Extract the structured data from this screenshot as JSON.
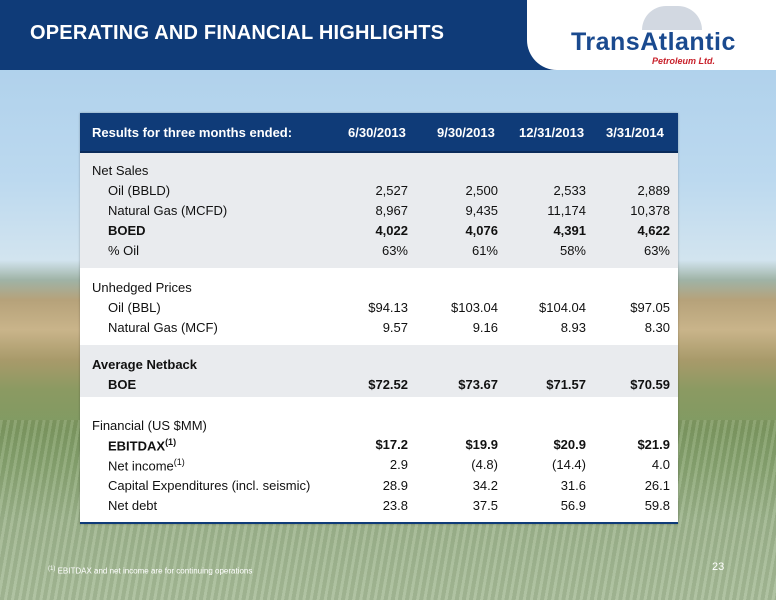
{
  "header": {
    "title": "OPERATING AND FINANCIAL HIGHLIGHTS"
  },
  "logo": {
    "name": "TransAtlantic",
    "sub": "Petroleum Ltd."
  },
  "table": {
    "header_label": "Results for three months ended:",
    "columns": [
      "6/30/2013",
      "9/30/2013",
      "12/31/2013",
      "3/31/2014"
    ],
    "sections": {
      "net_sales": {
        "title": "Net Sales",
        "rows": [
          {
            "label": "Oil (BBLD)",
            "values": [
              "2,527",
              "2,500",
              "2,533",
              "2,889"
            ]
          },
          {
            "label": "Natural Gas (MCFD)",
            "values": [
              "8,967",
              "9,435",
              "11,174",
              "10,378"
            ]
          },
          {
            "label": "BOED",
            "values": [
              "4,022",
              "4,076",
              "4,391",
              "4,622"
            ]
          },
          {
            "label": "% Oil",
            "values": [
              "63%",
              "61%",
              "58%",
              "63%"
            ]
          }
        ]
      },
      "prices": {
        "title": "Unhedged Prices",
        "rows": [
          {
            "label": "Oil (BBL)",
            "values": [
              "$94.13",
              "$103.04",
              "$104.04",
              "$97.05"
            ]
          },
          {
            "label": "Natural Gas (MCF)",
            "values": [
              "9.57",
              "9.16",
              "8.93",
              "8.30"
            ]
          }
        ]
      },
      "netback": {
        "title": "Average Netback",
        "rows": [
          {
            "label": "BOE",
            "values": [
              "$72.52",
              "$73.67",
              "$71.57",
              "$70.59"
            ]
          }
        ]
      },
      "financial": {
        "title": "Financial (US $MM)",
        "rows": [
          {
            "label": "EBITDAX",
            "sup": "(1)",
            "values": [
              "$17.2",
              "$19.9",
              "$20.9",
              "$21.9"
            ]
          },
          {
            "label": "Net income",
            "sup": "(1)",
            "values": [
              "2.9",
              "(4.8)",
              "(14.4)",
              "4.0"
            ]
          },
          {
            "label": "Capital Expenditures (incl. seismic)",
            "values": [
              "28.9",
              "34.2",
              "31.6",
              "26.1"
            ]
          },
          {
            "label": "Net debt",
            "values": [
              "23.8",
              "37.5",
              "56.9",
              "59.8"
            ]
          }
        ]
      }
    }
  },
  "footnote": {
    "marker": "(1)",
    "text": "EBITDAX and net income are for continuing operations"
  },
  "page_number": "23"
}
